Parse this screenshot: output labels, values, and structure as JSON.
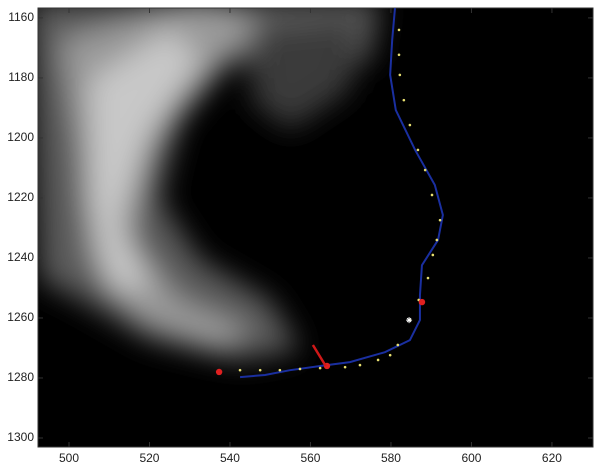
{
  "chart_data": {
    "type": "line",
    "xlim": [
      492.3,
      630.2
    ],
    "ylim": [
      1156.7,
      1303
    ],
    "y_reversed": true,
    "xticks": [
      500,
      520,
      540,
      560,
      580,
      600,
      620
    ],
    "yticks": [
      1160,
      1180,
      1200,
      1220,
      1240,
      1260,
      1280,
      1300
    ],
    "series": [
      {
        "style": "line",
        "color": "#1a2fa0",
        "x": [
          581.0,
          580.3,
          579.8,
          581.2,
          586.0,
          590.9,
          592.9,
          591.7,
          587.7,
          587.2,
          587.2,
          584.7,
          578.5,
          569.8,
          562.4,
          554.9,
          548.7,
          542.5
        ],
        "values": [
          1156.7,
          1167.4,
          1179,
          1190.7,
          1204,
          1215.7,
          1225.7,
          1234,
          1242.4,
          1252.4,
          1260.7,
          1267.4,
          1271.4,
          1274.7,
          1276,
          1277.4,
          1279,
          1279.7
        ]
      },
      {
        "style": "dots",
        "color": "#e8e070",
        "x": [
          582,
          582,
          582.2,
          583.2,
          584.7,
          586.7,
          588.5,
          590.2,
          592.2,
          591.4,
          590.4,
          589.2,
          586.9,
          584.7,
          581.7,
          579.8,
          576.8,
          572.3,
          568.6,
          562.4,
          557.4,
          552.4,
          547.5,
          542.5
        ],
        "values": [
          1164,
          1172.3,
          1179,
          1187.4,
          1195.7,
          1204,
          1210.7,
          1219,
          1227.4,
          1234,
          1239,
          1246.7,
          1254,
          1260.7,
          1269,
          1272.4,
          1274,
          1275.7,
          1276.4,
          1276.7,
          1277,
          1277.4,
          1277.4,
          1277.4
        ]
      },
      {
        "style": "points",
        "color": "#e02020",
        "x": [
          537.3,
          564.1,
          587.7
        ],
        "values": [
          1278,
          1276,
          1254.7
        ]
      },
      {
        "style": "star",
        "color": "#ffffff",
        "x": [
          584.5
        ],
        "values": [
          1260.7
        ]
      },
      {
        "style": "segment",
        "color": "#d01818",
        "x": [
          560.6,
          563.8
        ],
        "values": [
          1269,
          1276
        ]
      }
    ]
  }
}
